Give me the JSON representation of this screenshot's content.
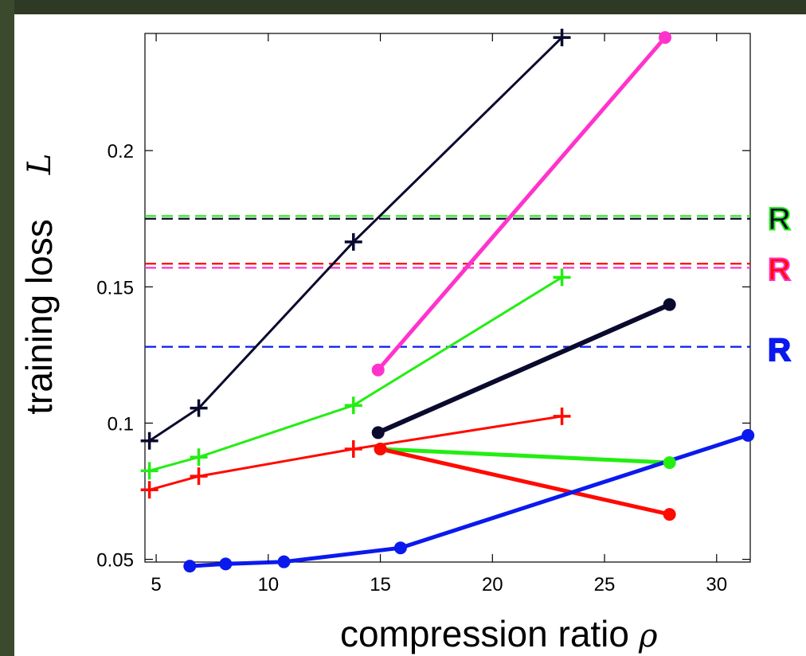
{
  "chart_data": {
    "type": "line",
    "xlabel": "compression ratio",
    "xlabel_symbol": "ρ",
    "ylabel": "training loss",
    "ylabel_symbol": "L",
    "xlim": [
      4.5,
      31.5
    ],
    "ylim": [
      0.049,
      0.243
    ],
    "xticks": [
      5,
      10,
      15,
      20,
      25,
      30
    ],
    "yticks": [
      0.05,
      0.1,
      0.15,
      0.2
    ],
    "ytick_labels": [
      "0.05",
      "0.1",
      "0.15",
      "0.2"
    ],
    "grid": false,
    "series": [
      {
        "marker": "plus",
        "color": "#0a0a2e",
        "line_width": 3,
        "points": [
          [
            4.7,
            0.0935
          ],
          [
            6.9,
            0.1055
          ],
          [
            13.8,
            0.1665
          ],
          [
            23.1,
            0.2415
          ]
        ]
      },
      {
        "marker": "plus",
        "color": "#22ee11",
        "line_width": 3,
        "points": [
          [
            4.7,
            0.0825
          ],
          [
            6.9,
            0.0875
          ],
          [
            13.8,
            0.1065
          ],
          [
            23.1,
            0.1535
          ]
        ]
      },
      {
        "marker": "plus",
        "color": "#ff0a00",
        "line_width": 3,
        "points": [
          [
            4.7,
            0.0755
          ],
          [
            6.9,
            0.0805
          ],
          [
            13.8,
            0.0905
          ],
          [
            23.1,
            0.1025
          ]
        ]
      },
      {
        "marker": "dot",
        "color": "#ff33cc",
        "line_width": 5,
        "points": [
          [
            14.9,
            0.1195
          ],
          [
            27.7,
            0.2415
          ]
        ]
      },
      {
        "marker": "dot",
        "color": "#0a0a2e",
        "line_width": 6,
        "points": [
          [
            14.9,
            0.0965
          ],
          [
            27.9,
            0.1435
          ]
        ]
      },
      {
        "marker": "dot",
        "color": "#22ee11",
        "line_width": 5,
        "points": [
          [
            15.0,
            0.0905
          ],
          [
            27.9,
            0.0855
          ]
        ]
      },
      {
        "marker": "dot",
        "color": "#ff0a00",
        "line_width": 5,
        "points": [
          [
            15.0,
            0.0905
          ],
          [
            27.9,
            0.0665
          ]
        ]
      },
      {
        "marker": "dot",
        "color": "#0a1aee",
        "line_width": 5,
        "points": [
          [
            6.5,
            0.0475
          ],
          [
            8.1,
            0.0483
          ],
          [
            10.7,
            0.0491
          ],
          [
            15.9,
            0.0542
          ],
          [
            31.4,
            0.0955
          ]
        ]
      }
    ],
    "reference_lines": [
      {
        "y": 0.176,
        "color": "#22ee11"
      },
      {
        "y": 0.175,
        "color": "#0a0a2e"
      },
      {
        "y": 0.1585,
        "color": "#ff0a00"
      },
      {
        "y": 0.157,
        "color": "#ff33cc"
      },
      {
        "y": 0.128,
        "color": "#0a1aee"
      }
    ],
    "reference_labels": [
      {
        "text": "R",
        "y": 0.175,
        "fill": "#0a0a2e",
        "stroke": "#22ee11"
      },
      {
        "text": "R",
        "y": 0.1565,
        "fill": "#ff0a00",
        "stroke": "#ff33cc"
      },
      {
        "text": "R",
        "y": 0.127,
        "fill": "#0a1aee",
        "stroke": "#0a1aee"
      }
    ]
  }
}
